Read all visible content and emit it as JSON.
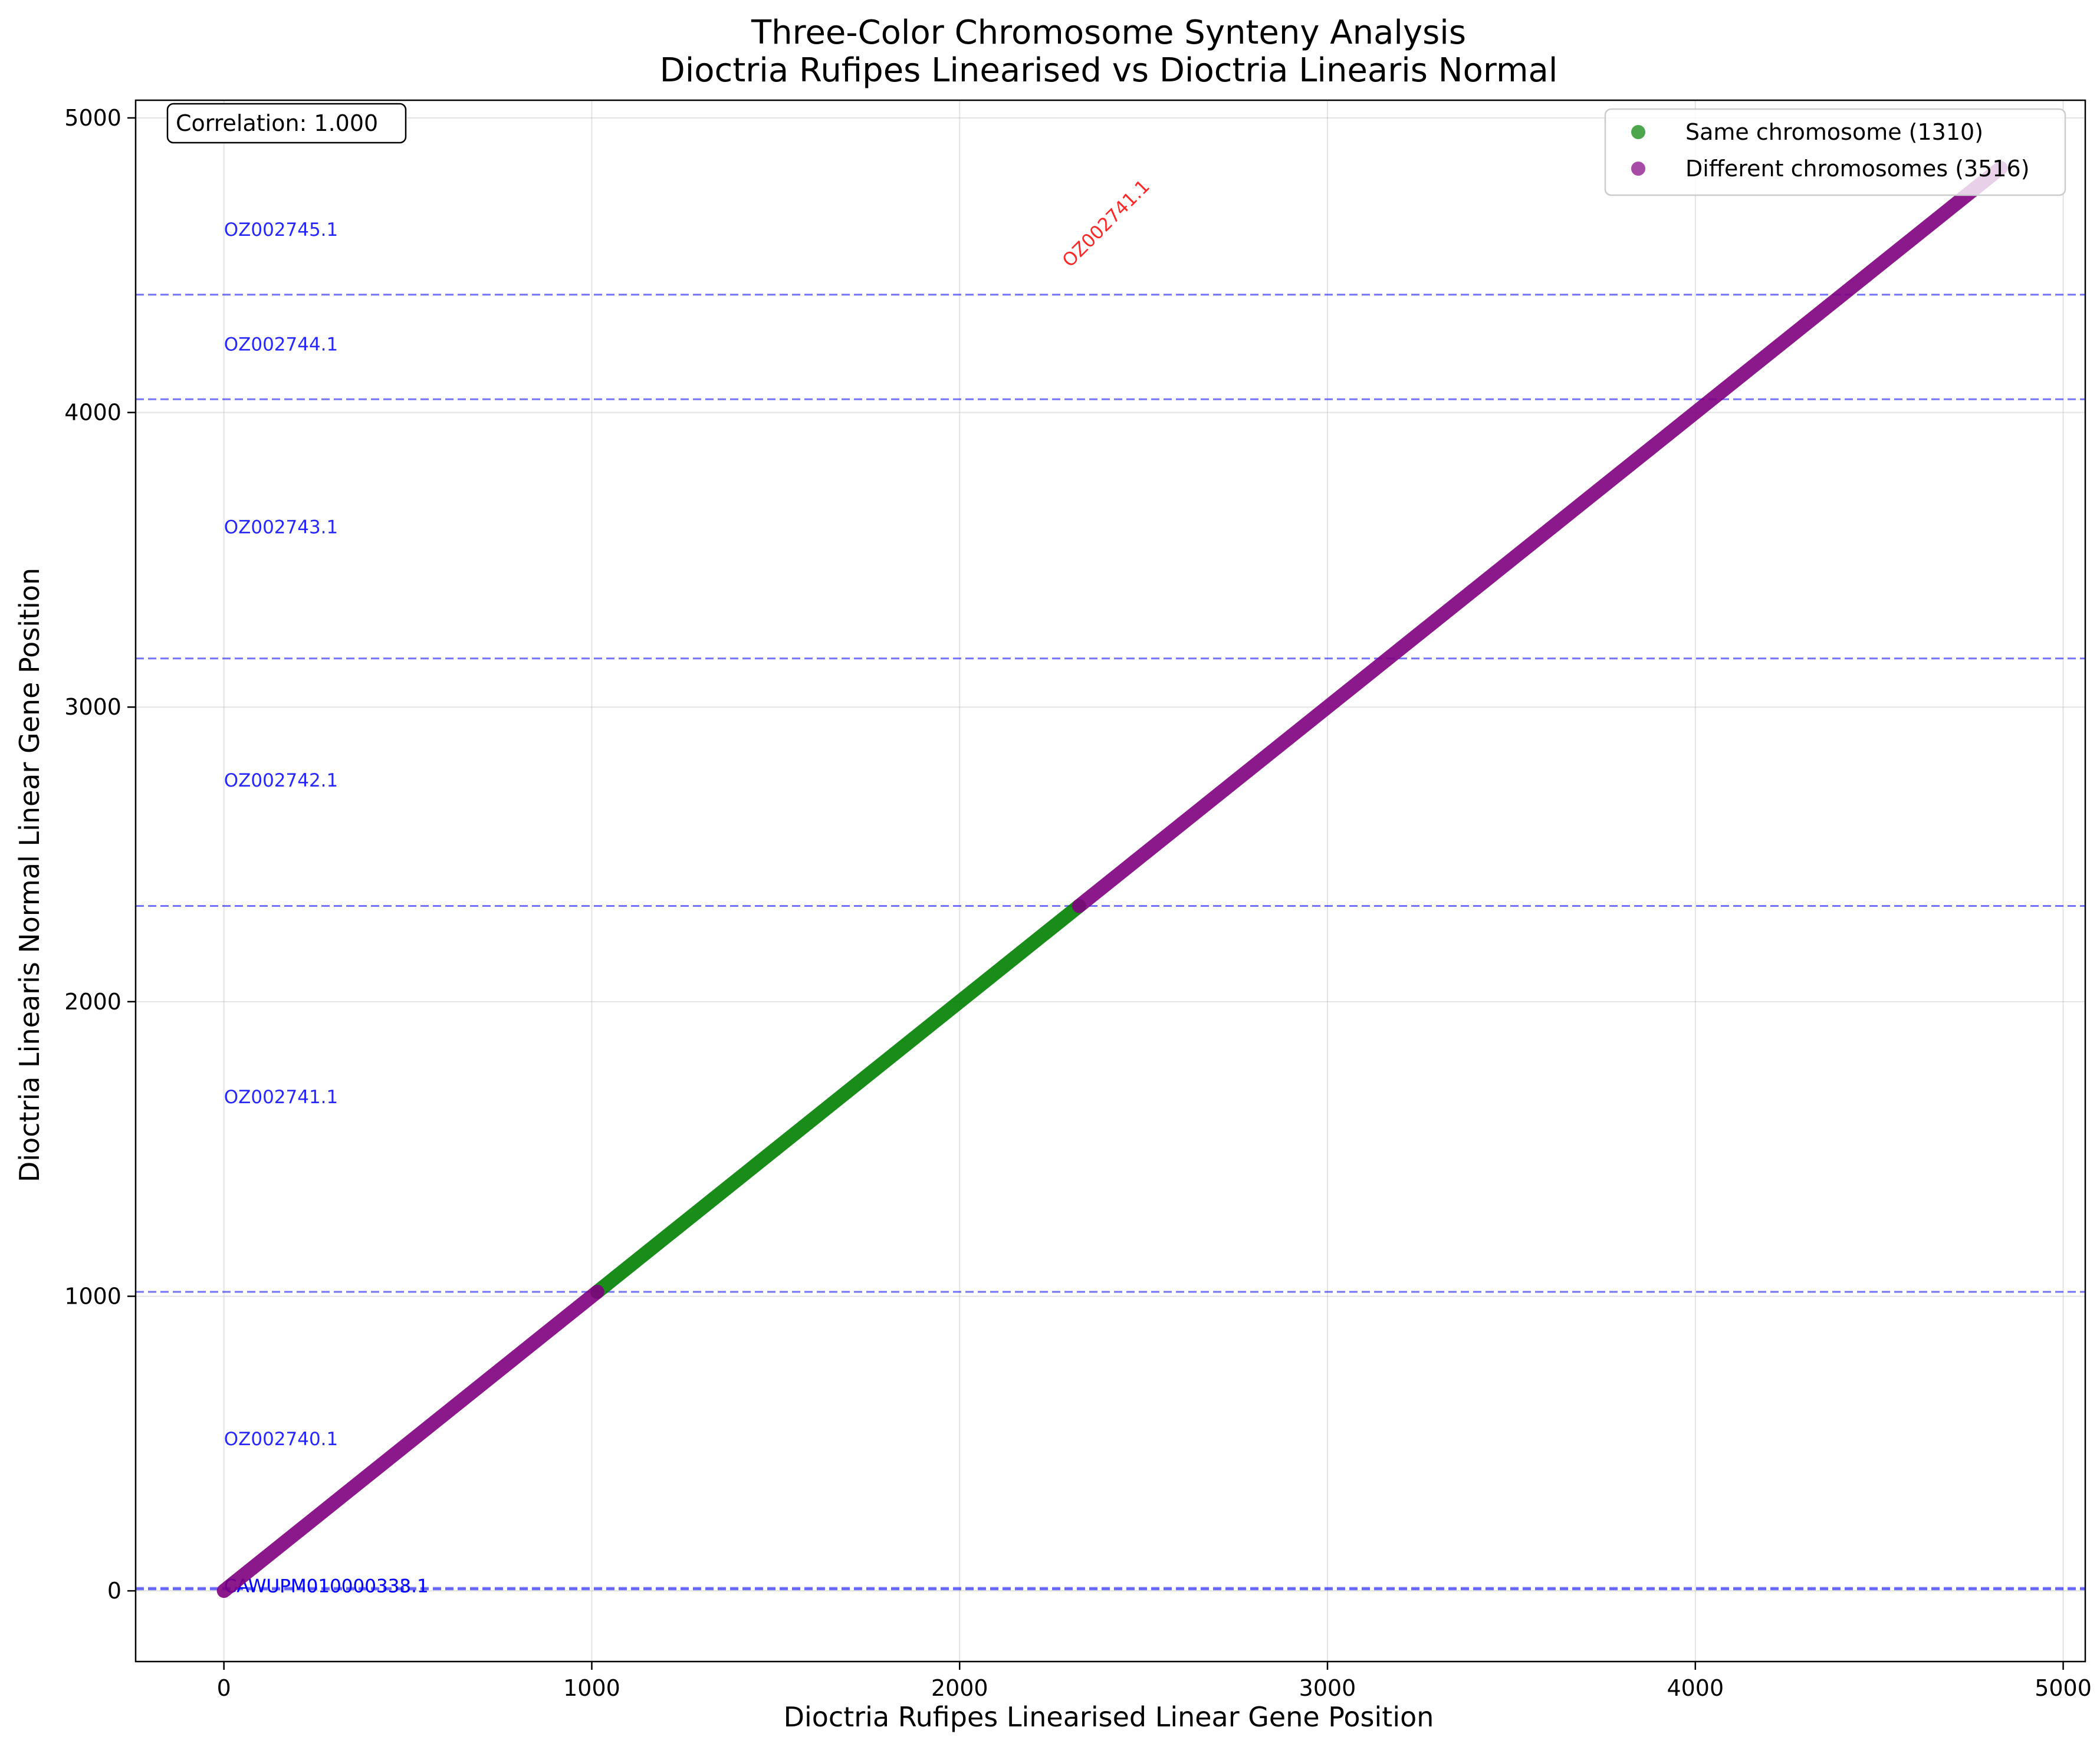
{
  "chart_data": {
    "type": "scatter",
    "title_line1": "Three-Color Chromosome Synteny Analysis",
    "title_line2": "Dioctria Rufipes Linearised vs Dioctria Linearis Normal",
    "xlabel": "Dioctria Rufipes Linearised Linear Gene Position",
    "ylabel": "Dioctria Linearis Normal Linear Gene Position",
    "xlim": [
      -240,
      5060
    ],
    "ylim": [
      -240,
      5060
    ],
    "x_ticks": [
      0,
      1000,
      2000,
      3000,
      4000,
      5000
    ],
    "y_ticks": [
      0,
      1000,
      2000,
      3000,
      4000,
      5000
    ],
    "grid": true,
    "correlation_label": "Correlation: 1.000",
    "legend_position": "top-right",
    "series": [
      {
        "name": "Same chromosome (1310)",
        "color": "#008000",
        "segments": [
          [
            1015,
            2325
          ]
        ]
      },
      {
        "name": "Different chromosomes (3516)",
        "color": "#800080",
        "segments": [
          [
            0,
            1015
          ],
          [
            2325,
            4830
          ]
        ]
      }
    ],
    "boundary_lines": [
      5,
      10,
      1015,
      2325,
      3165,
      4045,
      4400
    ],
    "chromosome_labels": [
      {
        "text": "OZ002745.1",
        "y": 4600
      },
      {
        "text": "OZ002744.1",
        "y": 4210
      },
      {
        "text": "OZ002743.1",
        "y": 3590
      },
      {
        "text": "OZ002742.1",
        "y": 2730
      },
      {
        "text": "OZ002741.1",
        "y": 1655
      },
      {
        "text": "OZ002740.1",
        "y": 495
      },
      {
        "text": "CAWUPM010000338.1",
        "y": -5
      },
      {
        "text": "CAWUPM010000333.1",
        "y": -5
      }
    ],
    "x_annotation": {
      "text": "OZ002741.1",
      "x": 2300,
      "y": 4490,
      "color": "#ff0000"
    },
    "boundary_color": "#0000ff",
    "label_color": "#0000ff"
  }
}
